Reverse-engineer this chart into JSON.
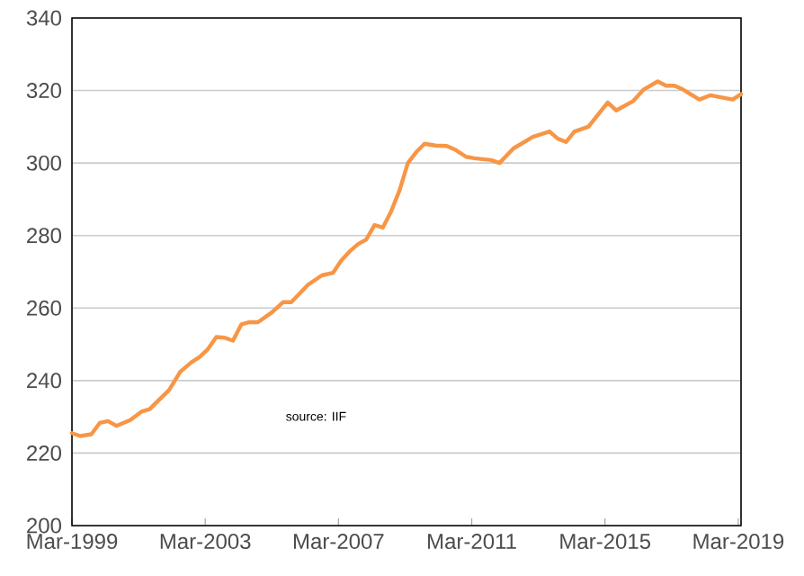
{
  "chart_data": {
    "type": "line",
    "x": [
      "1999-03",
      "1999-06",
      "1999-10",
      "2000-01",
      "2000-04",
      "2000-07",
      "2000-12",
      "2001-04",
      "2001-07",
      "2001-10",
      "2002-02",
      "2002-06",
      "2002-10",
      "2003-01",
      "2003-04",
      "2003-07",
      "2003-10",
      "2004-01",
      "2004-04",
      "2004-07",
      "2004-10",
      "2005-03",
      "2005-07",
      "2005-10",
      "2006-04",
      "2006-09",
      "2007-01",
      "2007-04",
      "2007-07",
      "2007-10",
      "2008-01",
      "2008-04",
      "2008-07",
      "2008-10",
      "2009-01",
      "2009-04",
      "2009-07",
      "2009-10",
      "2010-02",
      "2010-06",
      "2010-09",
      "2011-01",
      "2011-04",
      "2011-10",
      "2012-01",
      "2012-06",
      "2013-01",
      "2013-07",
      "2013-10",
      "2014-01",
      "2014-04",
      "2014-09",
      "2015-04",
      "2015-07",
      "2016-01",
      "2016-05",
      "2016-10",
      "2017-01",
      "2017-04",
      "2017-07",
      "2018-01",
      "2018-05",
      "2019-01",
      "2019-04"
    ],
    "series": [
      {
        "color": "#f79646",
        "values": [
          225.5,
          224.7,
          225.2,
          228.3,
          228.8,
          227.5,
          229.1,
          231.4,
          232.1,
          234.4,
          237.4,
          242.4,
          245.0,
          246.5,
          248.7,
          252.0,
          251.8,
          251.0,
          255.5,
          256.1,
          256.1,
          258.8,
          261.6,
          261.6,
          266.4,
          269.0,
          269.7,
          273.1,
          275.6,
          277.6,
          278.9,
          282.9,
          282.2,
          286.7,
          292.5,
          300.0,
          303.0,
          305.3,
          304.8,
          304.7,
          303.7,
          301.7,
          301.3,
          300.8,
          300.0,
          304.0,
          307.2,
          308.7,
          306.7,
          305.8,
          308.7,
          310.0,
          316.7,
          314.5,
          317.0,
          320.3,
          322.5,
          321.3,
          321.3,
          320.3,
          317.5,
          318.7,
          317.5,
          319.0
        ]
      }
    ],
    "xlim": [
      "1999-03",
      "2019-04"
    ],
    "xticks": [
      {
        "value": "1999-03",
        "label": "Mar-1999"
      },
      {
        "value": "2003-03",
        "label": "Mar-2003"
      },
      {
        "value": "2007-03",
        "label": "Mar-2007"
      },
      {
        "value": "2011-03",
        "label": "Mar-2011"
      },
      {
        "value": "2015-03",
        "label": "Mar-2015"
      },
      {
        "value": "2019-03",
        "label": "Mar-2019"
      }
    ],
    "ylim": [
      200,
      340
    ],
    "yticks": [
      200,
      220,
      240,
      260,
      280,
      300,
      320,
      340
    ],
    "grid": "y",
    "marker": "none",
    "line_style": "solid",
    "annotations": [
      "source:  IIF"
    ]
  }
}
